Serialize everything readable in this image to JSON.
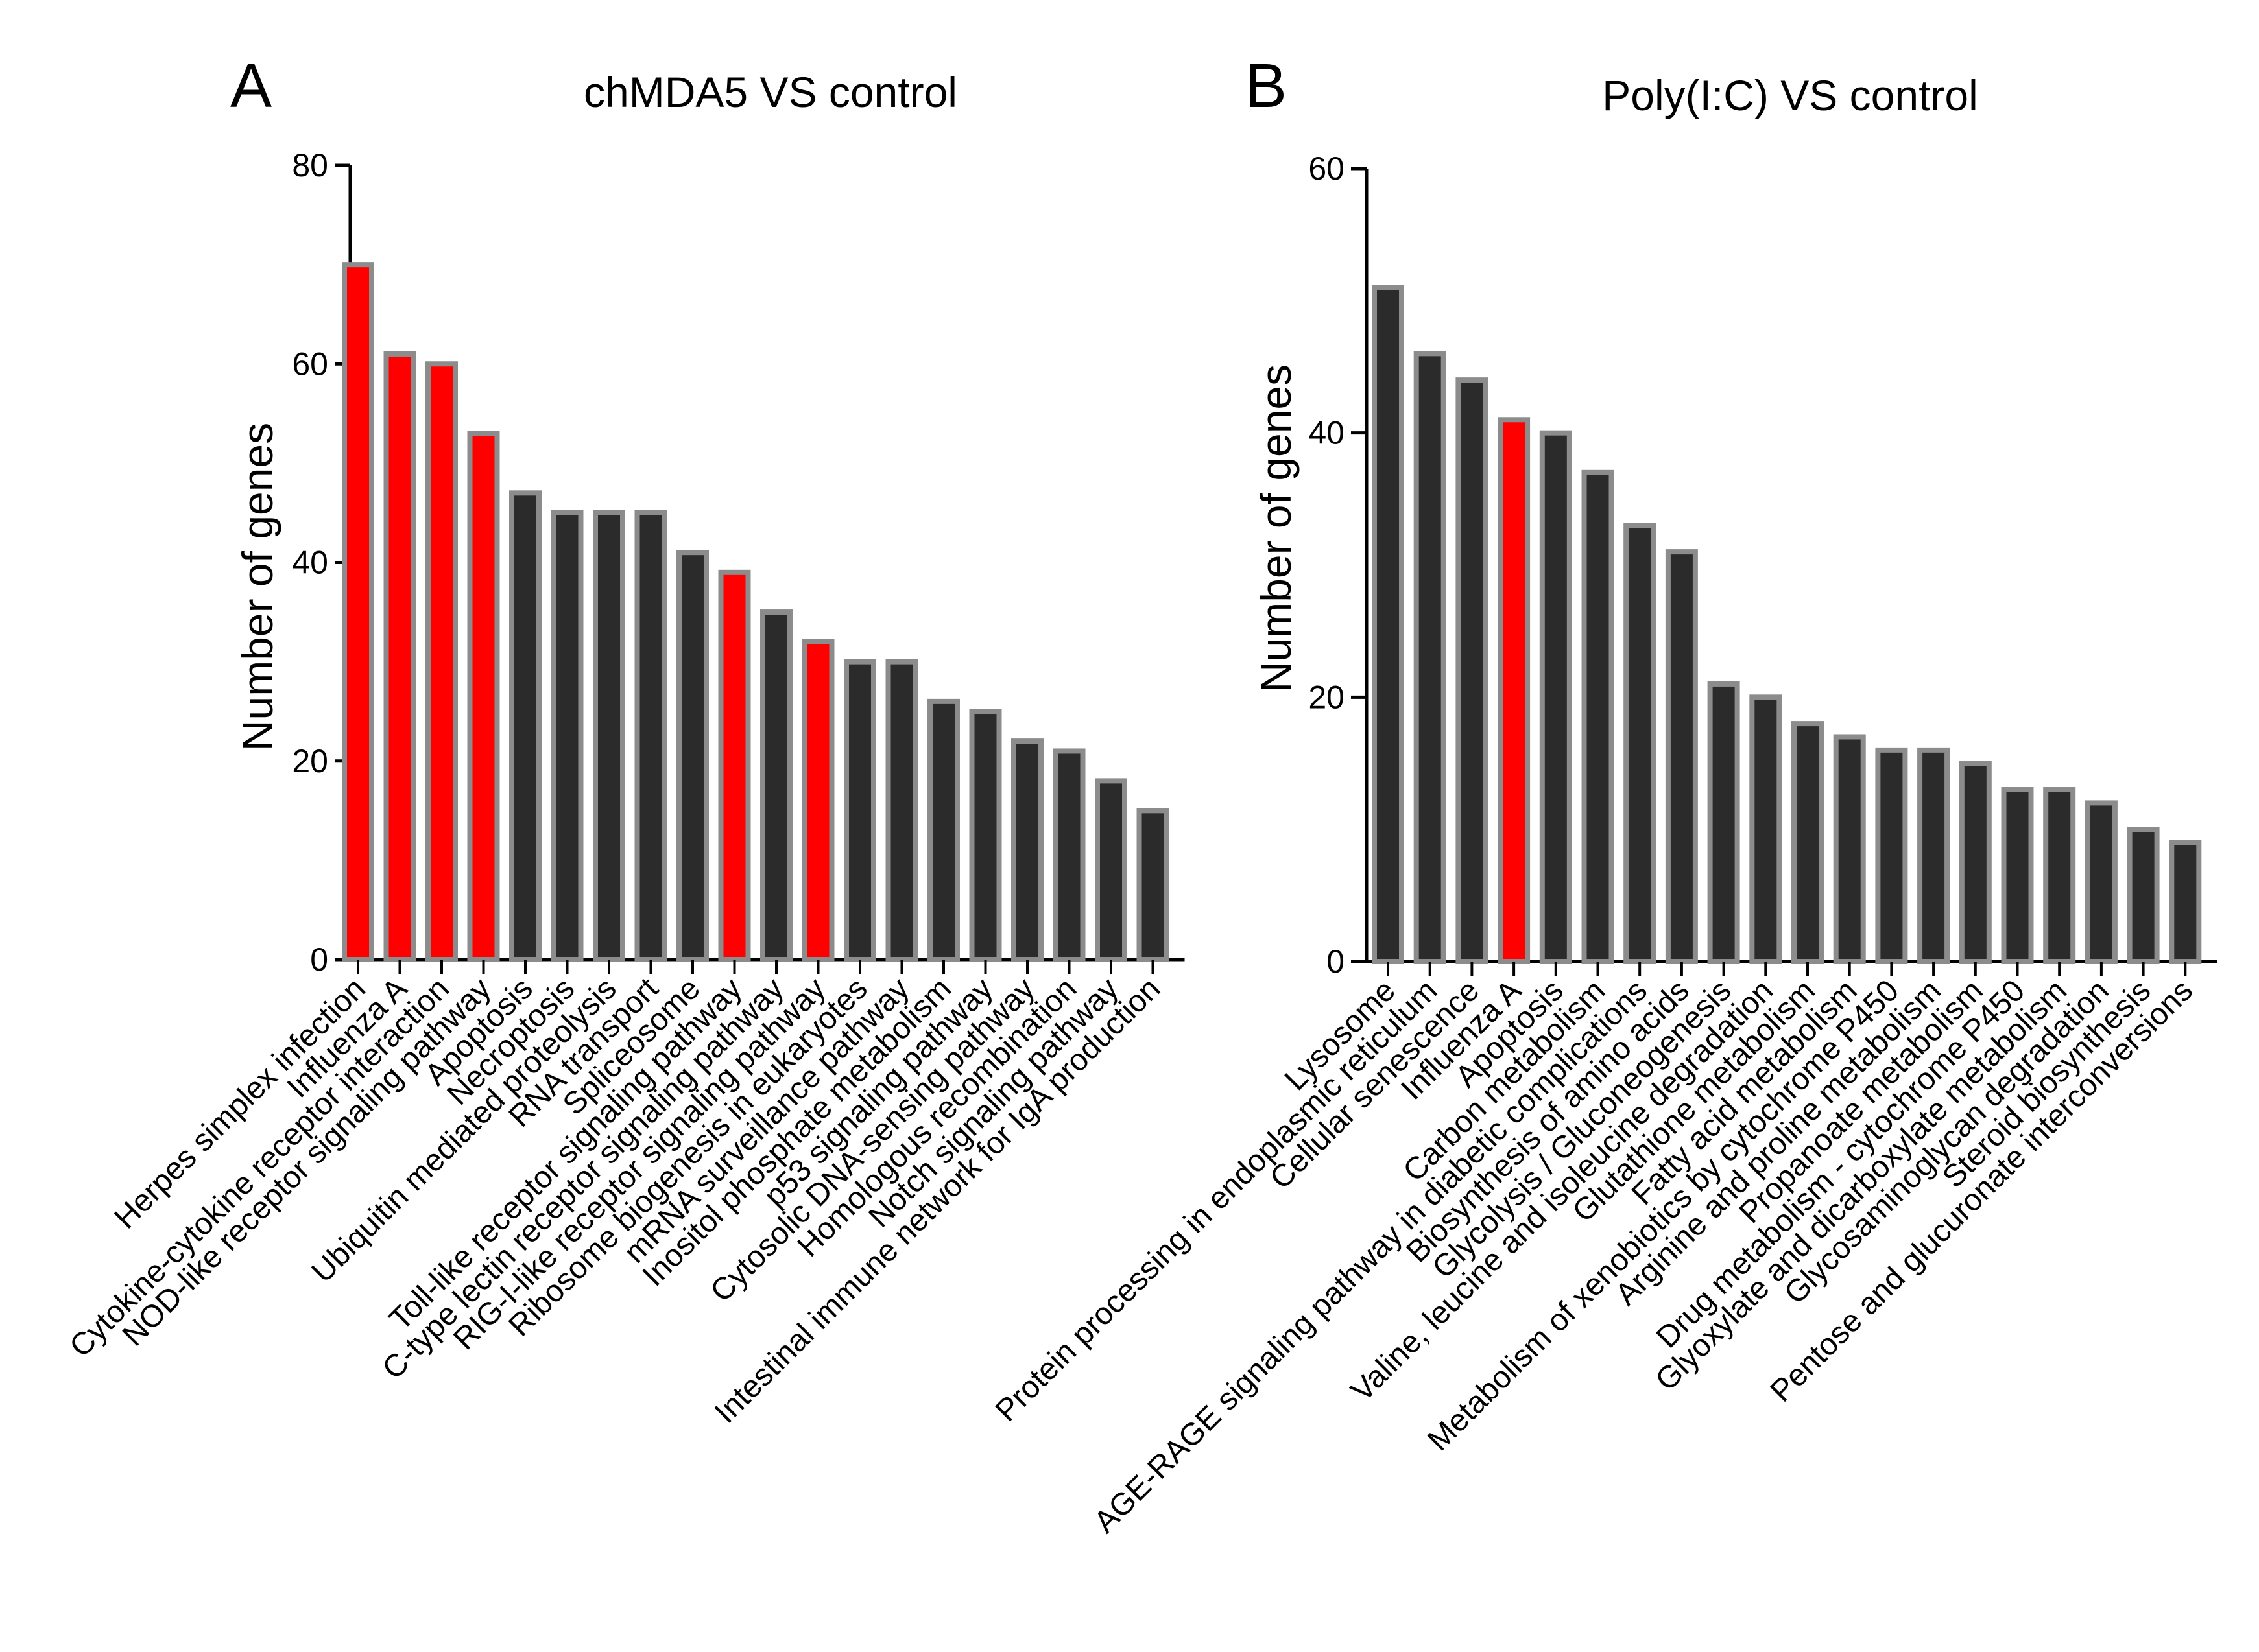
{
  "colors": {
    "highlight": "#ff0000",
    "bar_fill": "#2b2b2b",
    "bar_border": "#8c8c8c",
    "axis": "#000000"
  },
  "chart_data": [
    {
      "panel": "A",
      "type": "bar",
      "title": "chMDA5 VS control",
      "xlabel": "",
      "ylabel": "Number of genes",
      "ylim": [
        0,
        80
      ],
      "yticks": [
        0,
        20,
        40,
        60,
        80
      ],
      "grid": false,
      "categories": [
        "Herpes simplex infection",
        "Influenza A",
        "Cytokine-cytokine receptor interaction",
        "NOD-like receptor signaling pathway",
        "Apoptosis",
        "Necroptosis",
        "Ubiquitin mediated proteolysis",
        "RNA transport",
        "Spliceosome",
        "Toll-like receptor signaling pathway",
        "C-type lectin receptor signaling pathway",
        "RIG-I-like receptor signaling pathway",
        "Ribosome biogenesis in eukaryotes",
        "mRNA surveillance pathway",
        "Inositol phosphate metabolism",
        "p53 signaling pathway",
        "Cytosolic DNA-sensing pathway",
        "Homologous recombination",
        "Notch signaling pathway",
        "Intestinal immune network for IgA production"
      ],
      "values": [
        70,
        61,
        60,
        53,
        47,
        45,
        45,
        45,
        41,
        39,
        35,
        32,
        30,
        30,
        26,
        25,
        22,
        21,
        18,
        15
      ],
      "highlighted": [
        true,
        true,
        true,
        true,
        false,
        false,
        false,
        false,
        false,
        true,
        false,
        true,
        false,
        false,
        false,
        false,
        false,
        false,
        false,
        false
      ]
    },
    {
      "panel": "B",
      "type": "bar",
      "title": "Poly(I:C) VS control",
      "xlabel": "",
      "ylabel": "Number of genes",
      "ylim": [
        0,
        60
      ],
      "yticks": [
        0,
        20,
        40,
        60
      ],
      "grid": false,
      "categories": [
        "Lysosome",
        "Protein processing in endoplasmic reticulum",
        "Cellular senescence",
        "Influenza A",
        "Apoptosis",
        "Carbon metabolism",
        "AGE-RAGE signaling pathway in diabetic complications",
        "Biosynthesis of amino acids",
        "Glycolysis / Gluconeogenesis",
        "Valine, leucine and isoleucine degradation",
        "Glutathione metabolism",
        "Fatty acid metabolism",
        "Metabolism of xenobiotics by cytochrome P450",
        "Arginine and proline metabolism",
        "Propanoate metabolism",
        "Drug metabolism - cytochrome P450",
        "Glyoxylate and dicarboxylate metabolism",
        "Glycosaminoglycan degradation",
        "Steroid biosynthesis",
        "Pentose and glucuronate interconversions"
      ],
      "values": [
        51,
        46,
        44,
        41,
        40,
        37,
        33,
        31,
        21,
        20,
        18,
        17,
        16,
        16,
        15,
        13,
        13,
        12,
        10,
        9
      ],
      "highlighted": [
        false,
        false,
        false,
        true,
        false,
        false,
        false,
        false,
        false,
        false,
        false,
        false,
        false,
        false,
        false,
        false,
        false,
        false,
        false,
        false
      ]
    }
  ]
}
